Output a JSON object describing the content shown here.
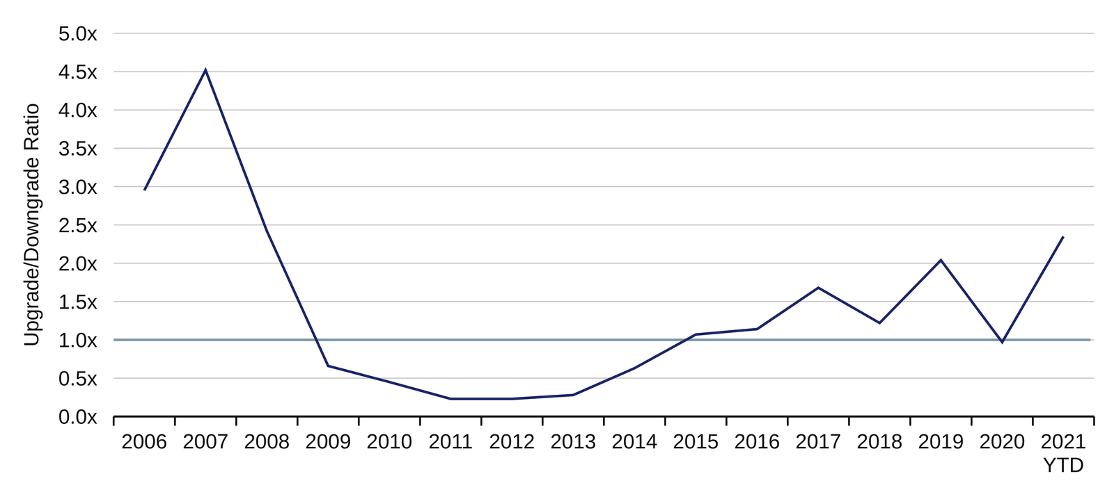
{
  "chart_data": {
    "type": "line",
    "y_label": "Upgrade/Downgrade Ratio",
    "categories": [
      "2006",
      "2007",
      "2008",
      "2009",
      "2010",
      "2011",
      "2012",
      "2013",
      "2014",
      "2015",
      "2016",
      "2017",
      "2018",
      "2019",
      "2020",
      "2021 YTD"
    ],
    "values": [
      2.95,
      4.52,
      2.42,
      0.66,
      0.45,
      0.23,
      0.23,
      0.28,
      0.63,
      1.07,
      1.14,
      1.68,
      1.22,
      2.04,
      0.97,
      2.35
    ],
    "color": "#1b2568",
    "ylim": [
      0,
      5
    ],
    "yticks": [
      {
        "value": 0,
        "label": "0.0x"
      },
      {
        "value": 0.5,
        "label": "0.5x"
      },
      {
        "value": 1,
        "label": "1.0x"
      },
      {
        "value": 1.5,
        "label": "1.5x"
      },
      {
        "value": 2,
        "label": "2.0x"
      },
      {
        "value": 2.5,
        "label": "2.5x"
      },
      {
        "value": 3,
        "label": "3.0x"
      },
      {
        "value": 3.5,
        "label": "3.5x"
      },
      {
        "value": 4,
        "label": "4.0x"
      },
      {
        "value": 4.5,
        "label": "4.5x"
      },
      {
        "value": 5,
        "label": "5.0x"
      }
    ],
    "reference_line": {
      "value": 1,
      "color": "#7f98a9"
    },
    "grid": true
  }
}
